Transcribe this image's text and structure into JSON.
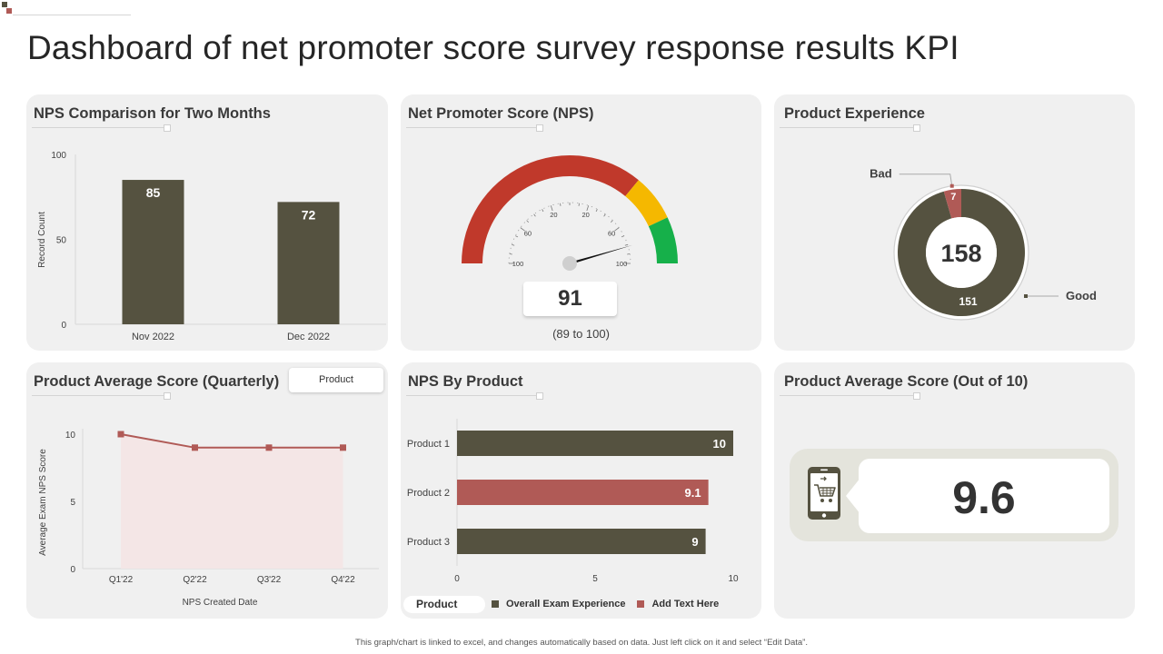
{
  "page": {
    "title": "Dashboard of net promoter score survey response results KPI",
    "footnote": "This graph/chart is linked to excel, and changes automatically based on data. Just left click on it and select “Edit Data”."
  },
  "colors": {
    "olive": "#555240",
    "red": "#c0392b",
    "rose": "#b05a56",
    "yellow": "#f5b800",
    "green": "#16b04a"
  },
  "panels": {
    "nps_comparison": {
      "title": "NPS Comparison for Two Months"
    },
    "nps_gauge": {
      "title": "Net Promoter Score (NPS)",
      "value": "91",
      "range": "(89 to 100)"
    },
    "product_experience": {
      "title": "Product Experience"
    },
    "quarterly": {
      "title": "Product Average Score (Quarterly)",
      "filter_label": "Product"
    },
    "nps_by_product": {
      "title": "NPS By Product",
      "legend_title": "Product",
      "legend_items": [
        "Overall Exam Experience",
        "Add Text Here"
      ]
    },
    "avg_score": {
      "title": "Product Average Score (Out of 10)",
      "value": "9.6"
    }
  },
  "chart_data": [
    {
      "id": "nps_comparison",
      "type": "bar",
      "categories": [
        "Nov 2022",
        "Dec 2022"
      ],
      "values": [
        85,
        72
      ],
      "ylabel": "Record Count",
      "ylim": [
        0,
        100
      ],
      "yticks": [
        0,
        50,
        100
      ],
      "color": "#555240"
    },
    {
      "id": "nps_gauge",
      "type": "gauge",
      "value": 91,
      "tick_labels": [
        "100",
        "60",
        "20",
        "20",
        "60",
        "100"
      ],
      "bands": [
        {
          "name": "detractors",
          "from": 0,
          "to": 0.72,
          "color": "#c0392b"
        },
        {
          "name": "passives",
          "from": 0.72,
          "to": 0.86,
          "color": "#f5b800"
        },
        {
          "name": "promoters",
          "from": 0.86,
          "to": 1.0,
          "color": "#16b04a"
        }
      ]
    },
    {
      "id": "product_experience",
      "type": "pie",
      "center_label": "158",
      "slices": [
        {
          "label": "Good",
          "value": 151,
          "color": "#555240"
        },
        {
          "label": "Bad",
          "value": 7,
          "color": "#b05a56"
        }
      ]
    },
    {
      "id": "quarterly",
      "type": "area",
      "x": [
        "Q1'22",
        "Q2'22",
        "Q3'22",
        "Q4'22"
      ],
      "values": [
        10,
        9,
        9,
        9
      ],
      "xlabel": "NPS  Created Date",
      "ylabel": "Average Exam NPS Score",
      "ylim": [
        0,
        10
      ],
      "yticks": [
        0,
        5,
        10
      ],
      "color": "#b05a56"
    },
    {
      "id": "nps_by_product",
      "type": "bar",
      "orientation": "horizontal",
      "categories": [
        "Product 1",
        "Product 2",
        "Product 3"
      ],
      "values": [
        10,
        9.1,
        9
      ],
      "labels": [
        "10",
        "9.1",
        "9"
      ],
      "colors": [
        "#555240",
        "#b05a56",
        "#555240"
      ],
      "xlim": [
        0,
        10
      ],
      "xticks": [
        0,
        5,
        10
      ]
    }
  ]
}
